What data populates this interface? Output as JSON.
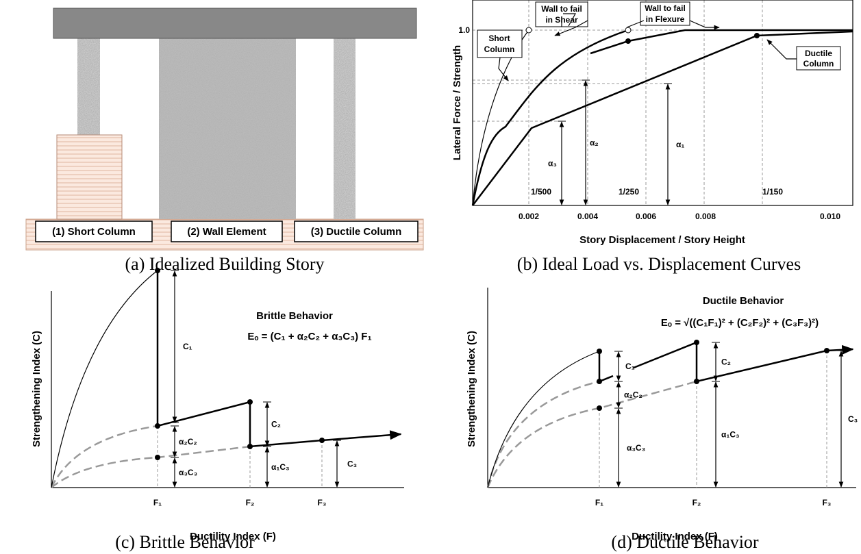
{
  "panels": [
    {
      "caption": "(a) Idealized Building Story",
      "labels": [
        "(1) Short Column",
        "(2) Wall Element",
        "(3) Ductile Column"
      ]
    },
    {
      "caption": "(b) Ideal Load vs. Displacement Curves",
      "x_label": "Story Displacement / Story Height",
      "y_label": "Lateral Force / Strength",
      "x_ticks": [
        "0.002",
        "0.004",
        "0.006",
        "0.008",
        "0.010"
      ],
      "y_tick": "1.0",
      "drift_labels": [
        "1/500",
        "1/250",
        "1/150"
      ],
      "annotations": [
        [
          "Short",
          "Column"
        ],
        [
          "Wall to fail",
          "in Shear"
        ],
        [
          "Wall to fail",
          "in Flexure"
        ],
        [
          "Ductile",
          "Column"
        ]
      ],
      "alpha_labels": [
        "α₁",
        "α₂",
        "α₃"
      ]
    },
    {
      "caption": "(c) Brittle Behavior",
      "title": "Brittle Behavior",
      "formula": "Eₒ = (C₁ + α₂C₂ + α₃C₃) F₁",
      "x_label": "Ductility Index (F)",
      "y_label": "Strengthening Index (C)",
      "x_ticks": [
        "F₁",
        "F₂",
        "F₃"
      ],
      "dims": [
        "C₁",
        "α₂C₂",
        "α₃C₃",
        "C₂",
        "α₁C₃",
        "C₃"
      ]
    },
    {
      "caption": "(d) Ductile Behavior",
      "title": "Ductile Behavior",
      "formula": "Eₒ = √((C₁F₁)² + (C₂F₂)² + (C₃F₃)²)",
      "x_label": "Ductility Index (F)",
      "y_label": "Strengthening Index (C)",
      "x_ticks": [
        "F₁",
        "F₂",
        "F₃"
      ],
      "dims": [
        "C₁",
        "α₂C₂",
        "α₃C₃",
        "C₂",
        "α₁C₃",
        "C₃"
      ]
    }
  ]
}
